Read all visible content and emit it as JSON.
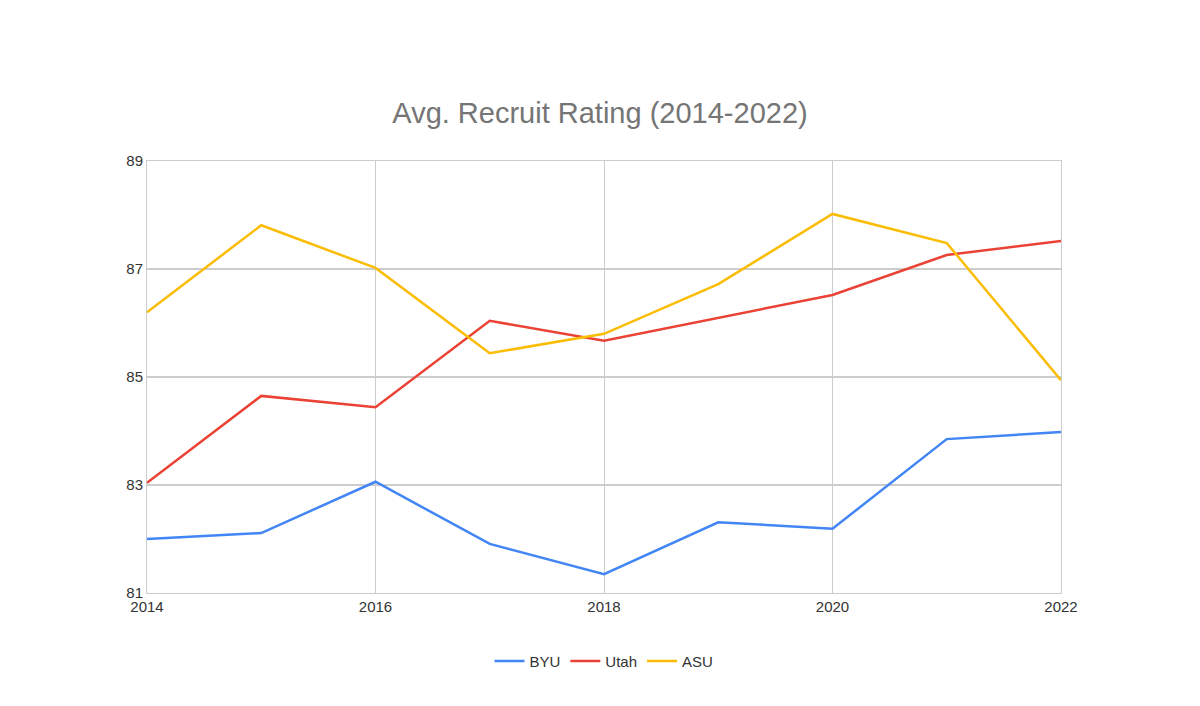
{
  "chart_data": {
    "type": "line",
    "title": "Avg. Recruit Rating (2014-2022)",
    "x": [
      2014,
      2015,
      2016,
      2017,
      2018,
      2019,
      2020,
      2021,
      2022
    ],
    "series": [
      {
        "name": "BYU",
        "color": "#4285f4",
        "values": [
          82.0,
          82.11,
          83.06,
          81.91,
          81.35,
          82.31,
          82.19,
          83.85,
          83.98
        ]
      },
      {
        "name": "Utah",
        "color": "#ea4335",
        "values": [
          83.04,
          84.65,
          84.44,
          86.04,
          85.67,
          86.09,
          86.52,
          87.26,
          87.52
        ]
      },
      {
        "name": "ASU",
        "color": "#fbbc04",
        "values": [
          86.2,
          87.81,
          87.02,
          85.44,
          85.8,
          86.72,
          88.02,
          87.48,
          84.94
        ]
      }
    ],
    "xlim": [
      2014,
      2022
    ],
    "xticks": [
      2014,
      2016,
      2018,
      2020,
      2022
    ],
    "ylim": [
      81,
      89
    ],
    "yticks": [
      81,
      83,
      85,
      87,
      89
    ],
    "grid": true,
    "legend": "bottom"
  }
}
